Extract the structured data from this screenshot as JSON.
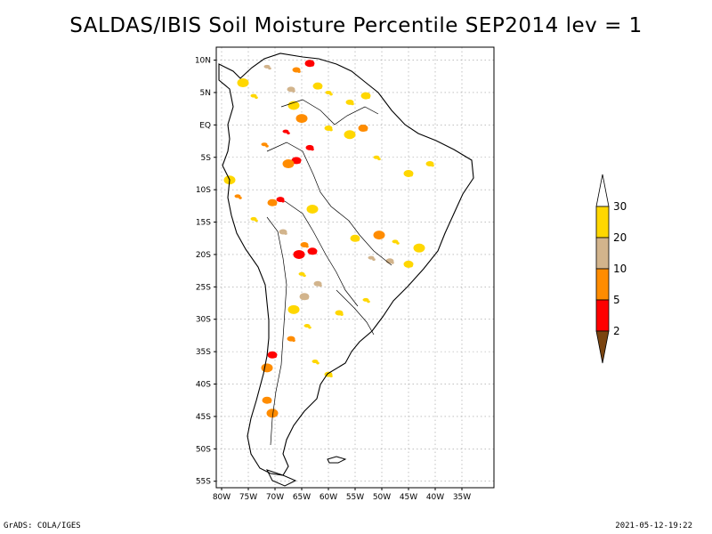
{
  "title": "SALDAS/IBIS Soil Moisture Percentile SEP2014 lev = 1",
  "footer": {
    "left": "GrADS: COLA/IGES",
    "right": "2021-05-12-19:22"
  },
  "map": {
    "region": "South America",
    "lat_range": [
      -56,
      12
    ],
    "lon_range": [
      -81,
      -29
    ],
    "grid": true,
    "lat_ticks": [
      {
        "value": 10,
        "label": "10N"
      },
      {
        "value": 5,
        "label": "5N"
      },
      {
        "value": 0,
        "label": "EQ"
      },
      {
        "value": -5,
        "label": "5S"
      },
      {
        "value": -10,
        "label": "10S"
      },
      {
        "value": -15,
        "label": "15S"
      },
      {
        "value": -20,
        "label": "20S"
      },
      {
        "value": -25,
        "label": "25S"
      },
      {
        "value": -30,
        "label": "30S"
      },
      {
        "value": -35,
        "label": "35S"
      },
      {
        "value": -40,
        "label": "40S"
      },
      {
        "value": -45,
        "label": "45S"
      },
      {
        "value": -50,
        "label": "50S"
      },
      {
        "value": -55,
        "label": "55S"
      }
    ],
    "lon_ticks": [
      {
        "value": -80,
        "label": "80W"
      },
      {
        "value": -75,
        "label": "75W"
      },
      {
        "value": -70,
        "label": "70W"
      },
      {
        "value": -65,
        "label": "65W"
      },
      {
        "value": -60,
        "label": "60W"
      },
      {
        "value": -55,
        "label": "55W"
      },
      {
        "value": -50,
        "label": "50W"
      },
      {
        "value": -45,
        "label": "45W"
      },
      {
        "value": -40,
        "label": "40W"
      },
      {
        "value": -35,
        "label": "35W"
      }
    ]
  },
  "colorbar": {
    "labels": [
      "2",
      "5",
      "10",
      "20",
      "30"
    ],
    "bins": [
      {
        "color": "#7a4410",
        "label": "<2"
      },
      {
        "color": "#ff0000",
        "label": "2-5"
      },
      {
        "color": "#ff8c00",
        "label": "5-10"
      },
      {
        "color": "#d2b48c",
        "label": "10-20"
      },
      {
        "color": "#ffd700",
        "label": "20-30"
      },
      {
        "color": "#ffffff",
        "label": ">30"
      }
    ]
  },
  "patches": [
    {
      "lat": 9.0,
      "lon": -71.5,
      "c": 3
    },
    {
      "lat": 8.5,
      "lon": -66.0,
      "c": 2
    },
    {
      "lat": 9.5,
      "lon": -63.5,
      "c": 1
    },
    {
      "lat": 6.5,
      "lon": -76.0,
      "c": 4
    },
    {
      "lat": 4.5,
      "lon": -74.0,
      "c": 4
    },
    {
      "lat": 5.5,
      "lon": -67.0,
      "c": 3
    },
    {
      "lat": 6.0,
      "lon": -62.0,
      "c": 4
    },
    {
      "lat": 3.0,
      "lon": -66.5,
      "c": 4
    },
    {
      "lat": 5.0,
      "lon": -60.0,
      "c": 4
    },
    {
      "lat": 3.5,
      "lon": -56.0,
      "c": 4
    },
    {
      "lat": 4.5,
      "lon": -53.0,
      "c": 4
    },
    {
      "lat": 1.0,
      "lon": -65.0,
      "c": 2
    },
    {
      "lat": -1.0,
      "lon": -68.0,
      "c": 1
    },
    {
      "lat": -0.5,
      "lon": -60.0,
      "c": 4
    },
    {
      "lat": -0.5,
      "lon": -53.5,
      "c": 2
    },
    {
      "lat": -1.5,
      "lon": -56.0,
      "c": 4
    },
    {
      "lat": -3.0,
      "lon": -72.0,
      "c": 2
    },
    {
      "lat": -3.5,
      "lon": -63.5,
      "c": 1
    },
    {
      "lat": -5.5,
      "lon": -66.0,
      "c": 1
    },
    {
      "lat": -6.0,
      "lon": -67.5,
      "c": 2
    },
    {
      "lat": -5.0,
      "lon": -51.0,
      "c": 4
    },
    {
      "lat": -6.0,
      "lon": -41.0,
      "c": 4
    },
    {
      "lat": -7.5,
      "lon": -45.0,
      "c": 4
    },
    {
      "lat": -8.5,
      "lon": -78.5,
      "c": 4
    },
    {
      "lat": -11.0,
      "lon": -77.0,
      "c": 2
    },
    {
      "lat": -11.5,
      "lon": -69.0,
      "c": 1
    },
    {
      "lat": -12.0,
      "lon": -70.5,
      "c": 2
    },
    {
      "lat": -13.0,
      "lon": -63.0,
      "c": 4
    },
    {
      "lat": -14.5,
      "lon": -74.0,
      "c": 4
    },
    {
      "lat": -16.5,
      "lon": -68.5,
      "c": 3
    },
    {
      "lat": -17.5,
      "lon": -55.0,
      "c": 4
    },
    {
      "lat": -17.0,
      "lon": -50.5,
      "c": 2
    },
    {
      "lat": -18.0,
      "lon": -47.5,
      "c": 4
    },
    {
      "lat": -18.5,
      "lon": -64.5,
      "c": 2
    },
    {
      "lat": -19.5,
      "lon": -63.0,
      "c": 1
    },
    {
      "lat": -20.0,
      "lon": -65.5,
      "c": 1
    },
    {
      "lat": -20.5,
      "lon": -52.0,
      "c": 3
    },
    {
      "lat": -21.0,
      "lon": -48.5,
      "c": 3
    },
    {
      "lat": -21.5,
      "lon": -45.0,
      "c": 4
    },
    {
      "lat": -19.0,
      "lon": -43.0,
      "c": 4
    },
    {
      "lat": -23.0,
      "lon": -65.0,
      "c": 4
    },
    {
      "lat": -24.5,
      "lon": -62.0,
      "c": 3
    },
    {
      "lat": -26.5,
      "lon": -64.5,
      "c": 3
    },
    {
      "lat": -28.5,
      "lon": -66.5,
      "c": 4
    },
    {
      "lat": -31.0,
      "lon": -64.0,
      "c": 4
    },
    {
      "lat": -33.0,
      "lon": -67.0,
      "c": 2
    },
    {
      "lat": -35.5,
      "lon": -70.5,
      "c": 1
    },
    {
      "lat": -37.5,
      "lon": -71.5,
      "c": 2
    },
    {
      "lat": -36.5,
      "lon": -62.5,
      "c": 4
    },
    {
      "lat": -38.5,
      "lon": -60.0,
      "c": 4
    },
    {
      "lat": -42.5,
      "lon": -71.5,
      "c": 2
    },
    {
      "lat": -44.5,
      "lon": -70.5,
      "c": 2
    },
    {
      "lat": -27.0,
      "lon": -53.0,
      "c": 4
    },
    {
      "lat": -29.0,
      "lon": -58.0,
      "c": 4
    }
  ]
}
